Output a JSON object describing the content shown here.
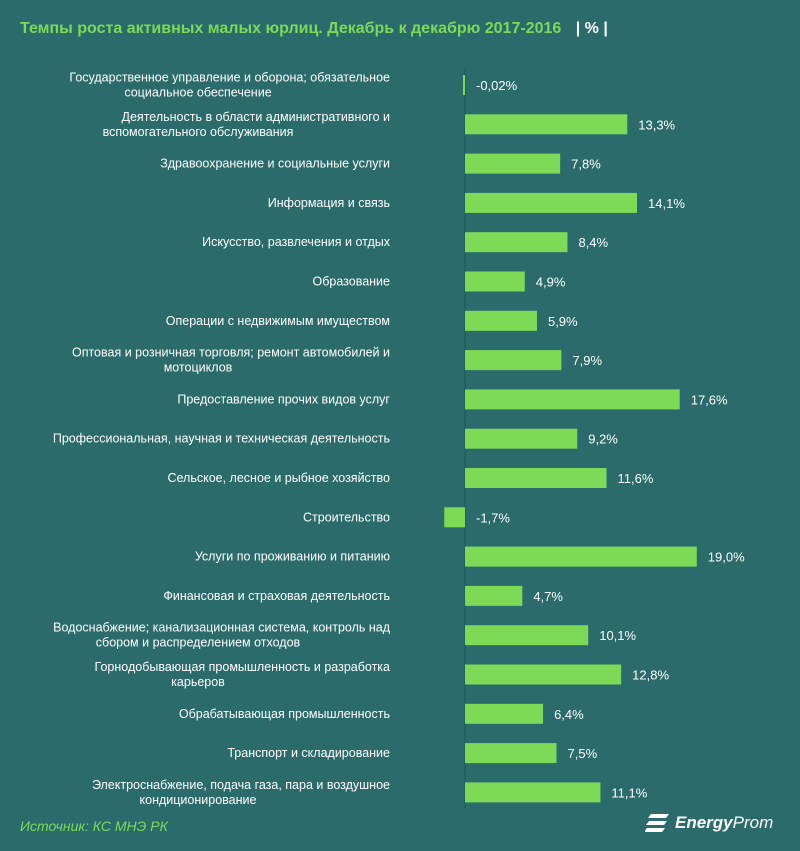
{
  "title": "Темпы роста активных малых юрлиц. Декабрь к декабрю 2017-2016",
  "unit_label": "| % |",
  "source": "Источник: КС МНЭ РК",
  "logo": {
    "bold": "Energy",
    "light": "Prom"
  },
  "colors": {
    "background": "#2b6b6c",
    "bar": "#7ed957",
    "title": "#7ed957",
    "text": "#ffffff"
  },
  "chart_data": {
    "type": "bar",
    "orientation": "horizontal",
    "categories": [
      [
        "Государственное управление и оборона; обязательное",
        "социальное обеспечение"
      ],
      [
        "Деятельность в области административного и",
        "вспомогательного обслуживания"
      ],
      [
        "Здравоохранение и социальные услуги"
      ],
      [
        "Информация и связь"
      ],
      [
        "Искусство, развлечения и отдых"
      ],
      [
        "Образование"
      ],
      [
        "Операции с недвижимым имуществом"
      ],
      [
        "Оптовая и розничная торговля; ремонт автомобилей и",
        "мотоциклов"
      ],
      [
        "Предоставление прочих видов услуг"
      ],
      [
        "Профессиональная, научная и техническая деятельность"
      ],
      [
        "Сельское, лесное и рыбное хозяйство"
      ],
      [
        "Строительство"
      ],
      [
        "Услуги по проживанию и питанию"
      ],
      [
        "Финансовая и страховая деятельность"
      ],
      [
        "Водоснабжение; канализационная система, контроль над",
        "сбором и распределением отходов"
      ],
      [
        "Горнодобывающая промышленность и разработка",
        "карьеров"
      ],
      [
        "Обрабатывающая промышленность"
      ],
      [
        "Транспорт и складирование"
      ],
      [
        "Электроснабжение, подача газа, пара и воздушное",
        "кондиционирование"
      ]
    ],
    "values": [
      -0.02,
      13.3,
      7.8,
      14.1,
      8.4,
      4.9,
      5.9,
      7.9,
      17.6,
      9.2,
      11.6,
      -1.7,
      19.0,
      4.7,
      10.1,
      12.8,
      6.4,
      7.5,
      11.1
    ],
    "value_labels": [
      "-0,02%",
      "13,3%",
      "7,8%",
      "14,1%",
      "8,4%",
      "4,9%",
      "5,9%",
      "7,9%",
      "17,6%",
      "9,2%",
      "11,6%",
      "-1,7%",
      "19,0%",
      "4,7%",
      "10,1%",
      "12,8%",
      "6,4%",
      "7,5%",
      "11,1%"
    ],
    "xlabel": "",
    "ylabel": "",
    "xlim": [
      -1.7,
      19.0
    ],
    "grid": false,
    "legend": "none"
  }
}
